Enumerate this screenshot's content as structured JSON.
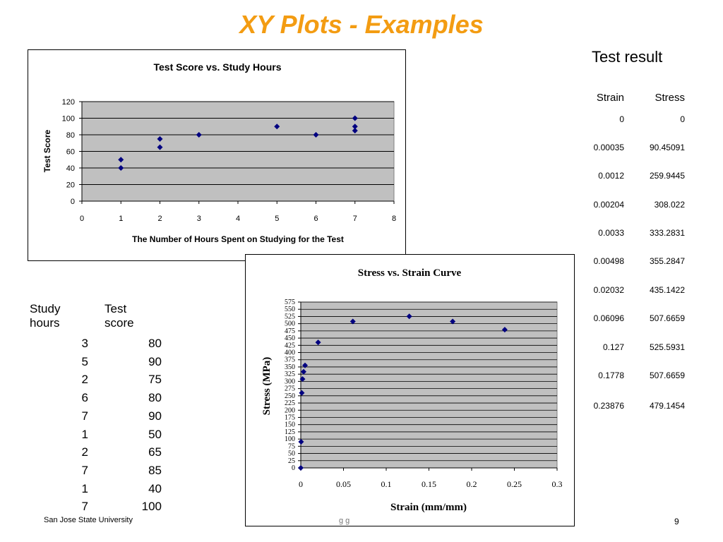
{
  "slide": {
    "title": "XY Plots - Examples",
    "footer_left": "San Jose State University",
    "footer_mid": "g g",
    "page_number": "9"
  },
  "results": {
    "title": "Test result",
    "headers": [
      "Strain",
      "Stress"
    ],
    "rows": [
      [
        "0",
        "0"
      ],
      [
        "0.00035",
        "90.45091"
      ],
      [
        "0.0012",
        "259.9445"
      ],
      [
        "0.00204",
        "308.022"
      ],
      [
        "0.0033",
        "333.2831"
      ],
      [
        "0.00498",
        "355.2847"
      ],
      [
        "0.02032",
        "435.1422"
      ],
      [
        "0.06096",
        "507.6659"
      ],
      [
        "0.127",
        "525.5931"
      ],
      [
        "0.1778",
        "507.6659"
      ],
      [
        "0.23876",
        "479.1454"
      ]
    ]
  },
  "study": {
    "headers": [
      "Study hours",
      "Test score"
    ],
    "rows": [
      [
        "3",
        "80"
      ],
      [
        "5",
        "90"
      ],
      [
        "2",
        "75"
      ],
      [
        "6",
        "80"
      ],
      [
        "7",
        "90"
      ],
      [
        "1",
        "50"
      ],
      [
        "2",
        "65"
      ],
      [
        "7",
        "85"
      ],
      [
        "1",
        "40"
      ],
      [
        "7",
        "100"
      ]
    ]
  },
  "chart_data": [
    {
      "type": "scatter",
      "title": "Test Score vs. Study Hours",
      "xlabel": "The Number of Hours  Spent on Studying for the Test",
      "ylabel": "Test Score",
      "xlim": [
        0,
        8
      ],
      "ylim": [
        0,
        120
      ],
      "xticks": [
        0,
        1,
        2,
        3,
        4,
        5,
        6,
        7,
        8
      ],
      "yticks": [
        0,
        20,
        40,
        60,
        80,
        100,
        120
      ],
      "grid": true,
      "plot_background": "#c0c0c0",
      "marker_color": "#000080",
      "points": [
        {
          "x": 3,
          "y": 80
        },
        {
          "x": 5,
          "y": 90
        },
        {
          "x": 2,
          "y": 75
        },
        {
          "x": 6,
          "y": 80
        },
        {
          "x": 7,
          "y": 90
        },
        {
          "x": 1,
          "y": 50
        },
        {
          "x": 2,
          "y": 65
        },
        {
          "x": 7,
          "y": 85
        },
        {
          "x": 1,
          "y": 40
        },
        {
          "x": 7,
          "y": 100
        }
      ]
    },
    {
      "type": "scatter",
      "title": "Stress vs. Strain Curve",
      "xlabel": "Strain (mm/mm)",
      "ylabel": "Stress (MPa)",
      "xlim": [
        0,
        0.3
      ],
      "ylim": [
        0,
        575
      ],
      "xticks": [
        0,
        0.05,
        0.1,
        0.15,
        0.2,
        0.25,
        0.3
      ],
      "xtick_labels": [
        "0",
        "0.05",
        "0.1",
        "0.15",
        "0.2",
        "0.25",
        "0.3"
      ],
      "ytick_step": 25,
      "grid": true,
      "plot_background": "#c0c0c0",
      "marker_color": "#000080",
      "points": [
        {
          "x": 0,
          "y": 0
        },
        {
          "x": 0.00035,
          "y": 90.45091
        },
        {
          "x": 0.0012,
          "y": 259.9445
        },
        {
          "x": 0.00204,
          "y": 308.022
        },
        {
          "x": 0.0033,
          "y": 333.2831
        },
        {
          "x": 0.00498,
          "y": 355.2847
        },
        {
          "x": 0.02032,
          "y": 435.1422
        },
        {
          "x": 0.06096,
          "y": 507.6659
        },
        {
          "x": 0.127,
          "y": 525.5931
        },
        {
          "x": 0.1778,
          "y": 507.6659
        },
        {
          "x": 0.23876,
          "y": 479.1454
        }
      ]
    }
  ]
}
